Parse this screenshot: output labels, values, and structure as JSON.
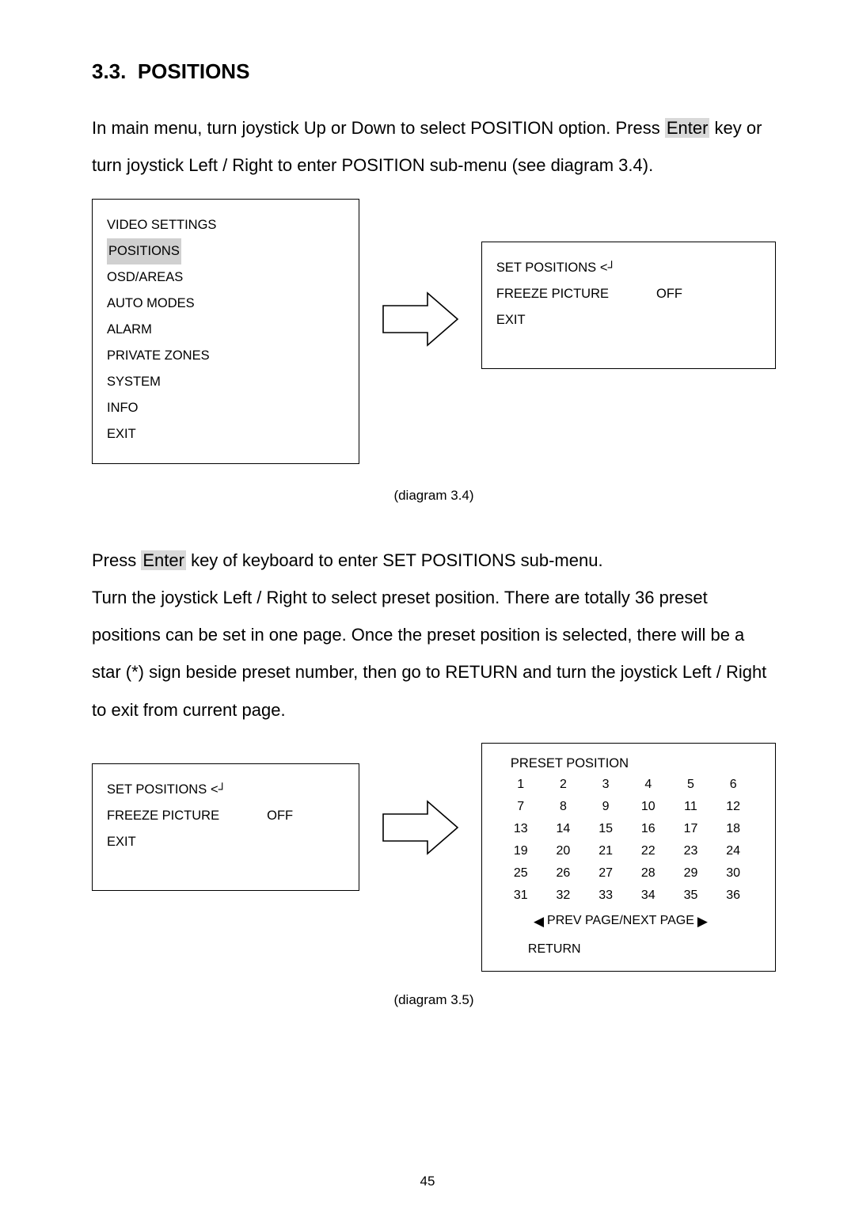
{
  "section": {
    "number": "3.3.",
    "title": "POSITIONS"
  },
  "para1_parts": {
    "a": "In main menu, turn joystick Up or Down to select POSITION option. Press ",
    "enter": "Enter",
    "b": " key or turn joystick Left / Right to enter POSITION sub-menu (see diagram 3.4)."
  },
  "main_menu": {
    "items": [
      "VIDEO SETTINGS",
      "POSITIONS",
      "OSD/AREAS",
      "AUTO MODES",
      "ALARM",
      "PRIVATE ZONES",
      "SYSTEM",
      "INFO",
      "EXIT"
    ],
    "highlight_index": 1
  },
  "sub_menu": {
    "set_positions": "SET POSITIONS",
    "set_glyph": "<┘",
    "freeze_label": "FREEZE PICTURE",
    "freeze_value": "OFF",
    "exit": "EXIT"
  },
  "diag34": "(diagram 3.4)",
  "para2_parts": {
    "a": "Press ",
    "enter": "Enter",
    "b": " key of keyboard to enter SET POSITIONS sub-menu."
  },
  "para3": "Turn the joystick Left / Right to select preset position. There are totally 36 preset positions can be set in one page. Once the preset position is selected, there will be a star (*) sign beside preset number, then go to RETURN and turn the joystick Left / Right to exit from current page.",
  "preset": {
    "title": "PRESET POSITION",
    "cells": [
      1,
      2,
      3,
      4,
      5,
      6,
      7,
      8,
      9,
      10,
      11,
      12,
      13,
      14,
      15,
      16,
      17,
      18,
      19,
      20,
      21,
      22,
      23,
      24,
      25,
      26,
      27,
      28,
      29,
      30,
      31,
      32,
      33,
      34,
      35,
      36
    ],
    "prev_next": "PREV PAGE/NEXT PAGE",
    "return": "RETURN"
  },
  "diag35": "(diagram 3.5)",
  "page_number": "45",
  "colors": {
    "highlight_bg": "#d0d0d0",
    "kbd_bg": "#d9d9d9"
  }
}
